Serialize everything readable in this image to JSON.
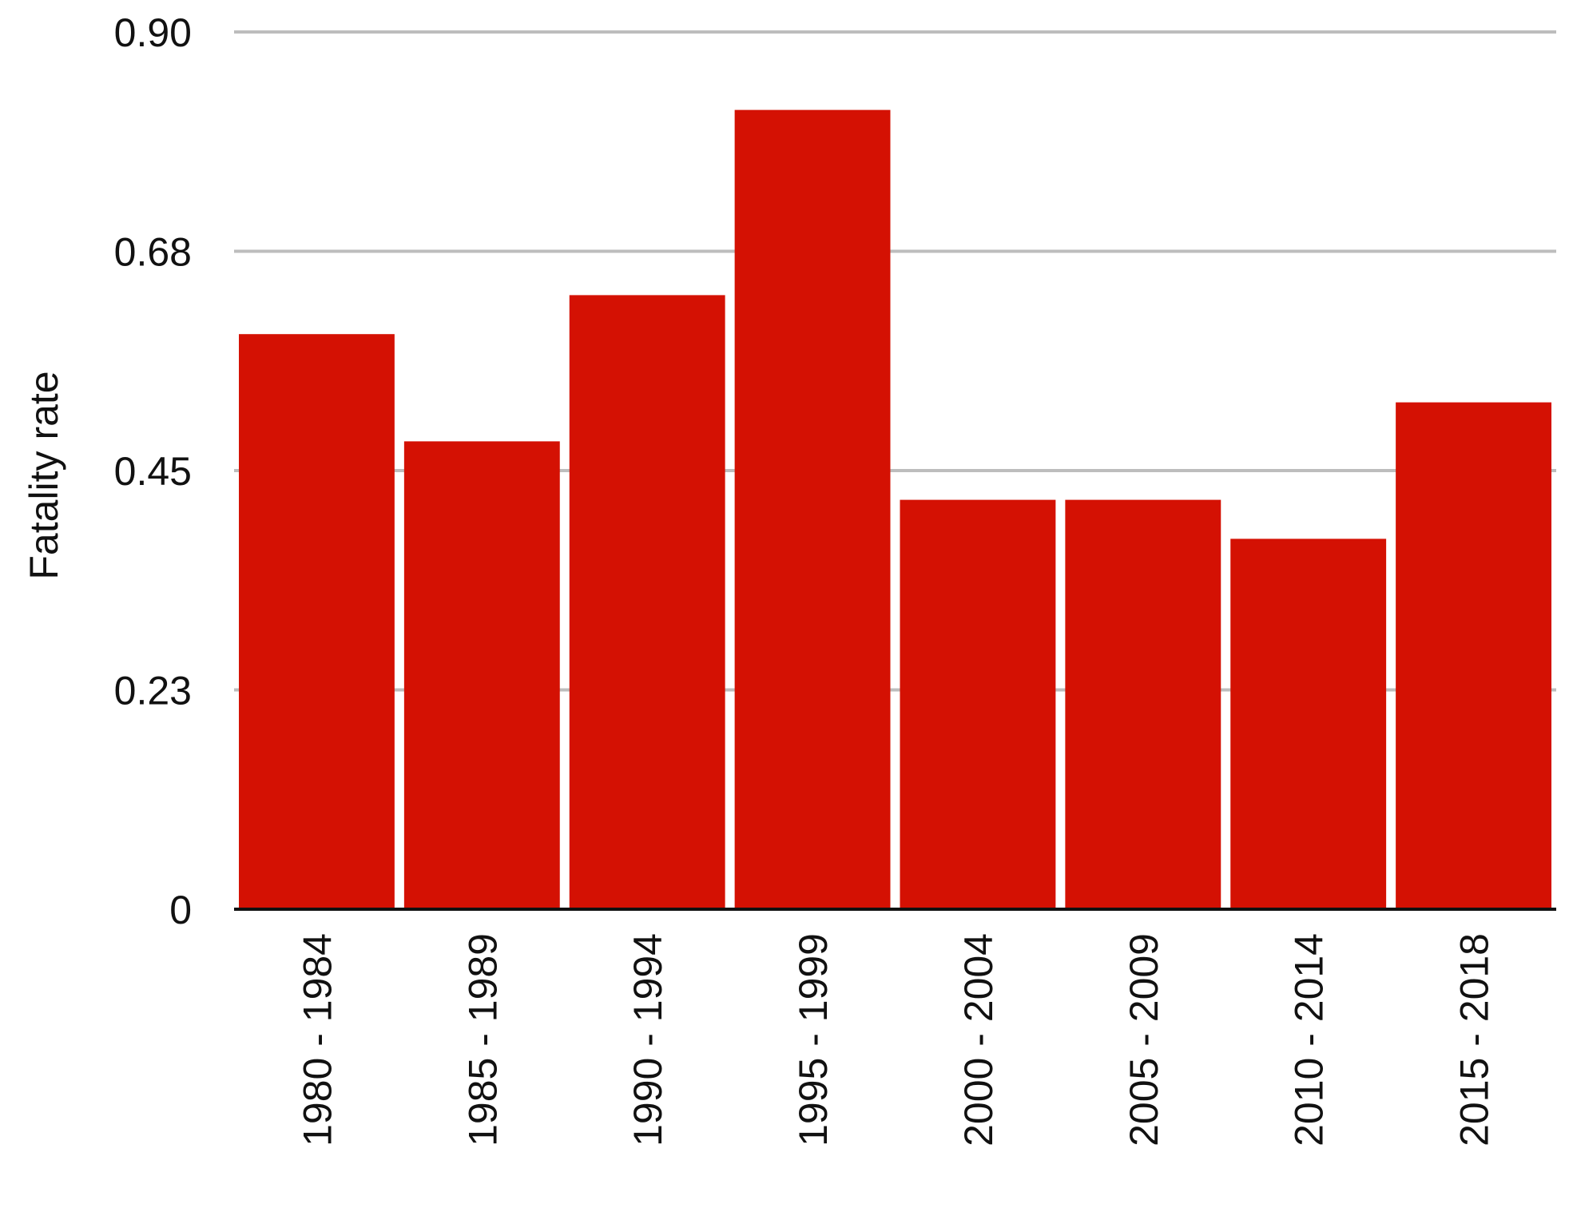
{
  "chart_data": {
    "type": "bar",
    "title": "",
    "xlabel": "",
    "ylabel": "Fatality rate",
    "categories": [
      "1980 - 1984",
      "1985 - 1989",
      "1990 - 1994",
      "1995 - 1999",
      "2000 - 2004",
      "2005 - 2009",
      "2010 - 2014",
      "2015 - 2018"
    ],
    "series": [
      {
        "values": [
          0.59,
          0.48,
          0.63,
          0.82,
          0.42,
          0.42,
          0.38,
          0.52
        ]
      }
    ],
    "ylim": [
      0,
      0.9
    ],
    "yticks": [
      0,
      0.225,
      0.45,
      0.675,
      0.9
    ],
    "ytick_labels": [
      "0",
      "0.23",
      "0.45",
      "0.68",
      "0.90"
    ],
    "grid": true,
    "legend": "none",
    "colors": {
      "bar": "#D41103",
      "grid": "#BDBDBD",
      "axis": "#111111"
    }
  }
}
